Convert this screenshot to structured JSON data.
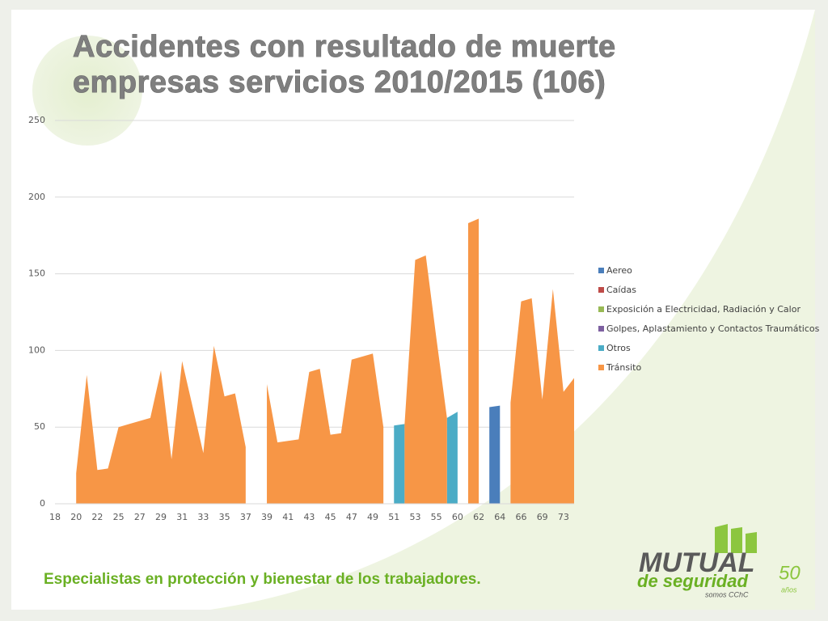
{
  "chart_data": {
    "type": "area",
    "title": [
      "Accidentes con resultado de muerte",
      "empresas servicios 2010/2015 (106)"
    ],
    "categories": [
      "18",
      null,
      "20",
      null,
      "22",
      null,
      "25",
      null,
      "27",
      null,
      "29",
      null,
      "31",
      null,
      "33",
      null,
      "35",
      null,
      "37",
      null,
      "39",
      null,
      "41",
      null,
      "43",
      null,
      "45",
      null,
      "47",
      null,
      "49",
      null,
      "51",
      null,
      "53",
      null,
      "55",
      null,
      "60",
      null,
      "62",
      null,
      "64",
      null,
      "66",
      null,
      "69",
      null,
      "73",
      null
    ],
    "series": [
      {
        "name": "Aereo",
        "color": "#4a7ebb",
        "values": [
          null,
          null,
          null,
          null,
          null,
          null,
          null,
          null,
          null,
          null,
          null,
          null,
          null,
          null,
          null,
          null,
          null,
          null,
          null,
          null,
          null,
          null,
          null,
          null,
          null,
          null,
          null,
          null,
          null,
          null,
          null,
          null,
          null,
          null,
          null,
          null,
          null,
          null,
          null,
          null,
          null,
          63,
          64,
          null,
          null,
          null,
          null,
          null,
          null,
          null
        ]
      },
      {
        "name": "Caídas",
        "color": "#be4b48",
        "values": [
          null,
          null,
          null,
          null,
          null,
          null,
          null,
          null,
          null,
          null,
          null,
          null,
          null,
          null,
          null,
          null,
          null,
          null,
          null,
          null,
          null,
          null,
          null,
          null,
          null,
          null,
          null,
          null,
          null,
          null,
          null,
          null,
          null,
          null,
          null,
          null,
          null,
          null,
          null,
          null,
          null,
          null,
          null,
          null,
          null,
          null,
          null,
          null,
          null,
          null
        ]
      },
      {
        "name": "Exposición a Electricidad, Radiación y Calor",
        "color": "#98b954",
        "values": [
          null,
          null,
          null,
          null,
          null,
          null,
          null,
          null,
          null,
          null,
          null,
          null,
          null,
          null,
          null,
          null,
          null,
          null,
          null,
          null,
          null,
          null,
          null,
          null,
          null,
          null,
          null,
          null,
          null,
          null,
          null,
          null,
          null,
          null,
          null,
          null,
          null,
          null,
          null,
          null,
          null,
          null,
          null,
          null,
          null,
          null,
          null,
          null,
          null,
          null
        ]
      },
      {
        "name": "Golpes, Aplastamiento y Contactos Traumáticos",
        "color": "#7d60a0",
        "values": [
          null,
          null,
          null,
          null,
          null,
          null,
          null,
          null,
          null,
          null,
          null,
          null,
          null,
          null,
          null,
          null,
          null,
          null,
          null,
          null,
          null,
          null,
          null,
          null,
          null,
          null,
          null,
          null,
          null,
          null,
          null,
          null,
          null,
          null,
          null,
          null,
          null,
          null,
          null,
          null,
          null,
          null,
          null,
          null,
          null,
          null,
          null,
          null,
          null,
          null
        ]
      },
      {
        "name": "Otros",
        "color": "#4bacc6",
        "values": [
          null,
          null,
          null,
          null,
          null,
          null,
          null,
          null,
          null,
          null,
          null,
          null,
          null,
          null,
          null,
          null,
          null,
          null,
          null,
          null,
          null,
          null,
          null,
          null,
          null,
          null,
          null,
          null,
          null,
          null,
          null,
          null,
          51,
          52,
          null,
          null,
          null,
          56,
          60,
          null,
          null,
          null,
          null,
          null,
          null,
          null,
          null,
          null,
          null,
          null
        ]
      },
      {
        "name": "Tránsito",
        "color": "#f79646",
        "values": [
          null,
          null,
          20,
          84,
          22,
          23,
          50,
          52,
          54,
          56,
          87,
          29,
          93,
          63,
          33,
          103,
          70,
          72,
          37,
          null,
          78,
          40,
          41,
          42,
          86,
          88,
          45,
          46,
          94,
          96,
          98,
          50,
          null,
          52,
          159,
          162,
          108,
          56,
          null,
          183,
          186,
          null,
          null,
          66,
          132,
          134,
          68,
          140,
          73,
          82
        ]
      }
    ],
    "ylim": [
      0,
      250
    ],
    "yticks": [
      0,
      50,
      100,
      150,
      200,
      250
    ],
    "grid": true,
    "footer": "Especialistas en protección y bienestar de los trabajadores.",
    "logo": {
      "line1": "MUTUAL",
      "line2": "de seguridad",
      "line3": "somos CChC",
      "years": "50",
      "years_word": "años"
    }
  }
}
